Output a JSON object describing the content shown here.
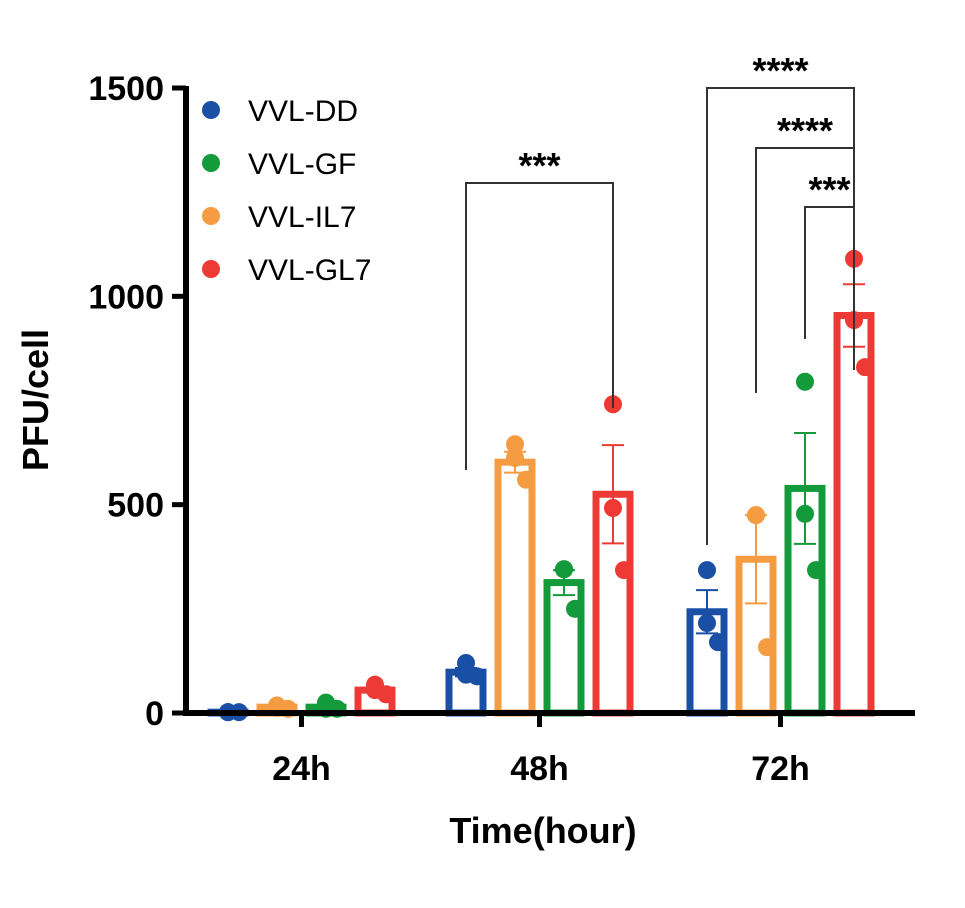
{
  "chart_data": {
    "type": "bar",
    "title": "",
    "xlabel": "Time(hour)",
    "ylabel": "PFU/cell",
    "ylim": [
      0,
      1500
    ],
    "yticks": [
      0,
      500,
      1000,
      1500
    ],
    "categories": [
      "24h",
      "48h",
      "72h"
    ],
    "grid": false,
    "legend_position": "top-left",
    "legend_order": [
      "VVL-DD",
      "VVL-GF",
      "VVL-IL7",
      "VVL-GL7"
    ],
    "series": [
      {
        "name": "VVL-DD",
        "color": "#1a4fa6",
        "values": [
          2,
          98,
          243
        ],
        "sem": [
          1,
          10,
          52
        ],
        "points": [
          [
            2,
            2,
            2
          ],
          [
            120,
            92,
            88
          ],
          [
            343,
            216,
            170
          ]
        ]
      },
      {
        "name": "VVL-IL7",
        "color": "#f59c42",
        "values": [
          14,
          602,
          369
        ],
        "sem": [
          3,
          25,
          106
        ],
        "points": [
          [
            18,
            12,
            10
          ],
          [
            645,
            612,
            560
          ],
          [
            475,
            475,
            158
          ]
        ]
      },
      {
        "name": "VVL-GF",
        "color": "#139a3a",
        "values": [
          14,
          313,
          539
        ],
        "sem": [
          4,
          30,
          133
        ],
        "points": [
          [
            25,
            10,
            10
          ],
          [
            345,
            345,
            250
          ],
          [
            795,
            478,
            343
          ]
        ]
      },
      {
        "name": "VVL-GL7",
        "color": "#ee3a35",
        "values": [
          55,
          525,
          954
        ],
        "sem": [
          6,
          118,
          75
        ],
        "points": [
          [
            68,
            55,
            45
          ],
          [
            741,
            492,
            343
          ],
          [
            1090,
            943,
            830
          ]
        ]
      }
    ],
    "significance": [
      {
        "category": "48h",
        "from": "VVL-DD",
        "to": "VVL-GL7",
        "label": "***"
      },
      {
        "category": "72h",
        "from": "VVL-DD",
        "to": "VVL-GL7",
        "label": "****"
      },
      {
        "category": "72h",
        "from": "VVL-IL7",
        "to": "VVL-GL7",
        "label": "****"
      },
      {
        "category": "72h",
        "from": "VVL-GF",
        "to": "VVL-GL7",
        "label": "***"
      }
    ]
  }
}
